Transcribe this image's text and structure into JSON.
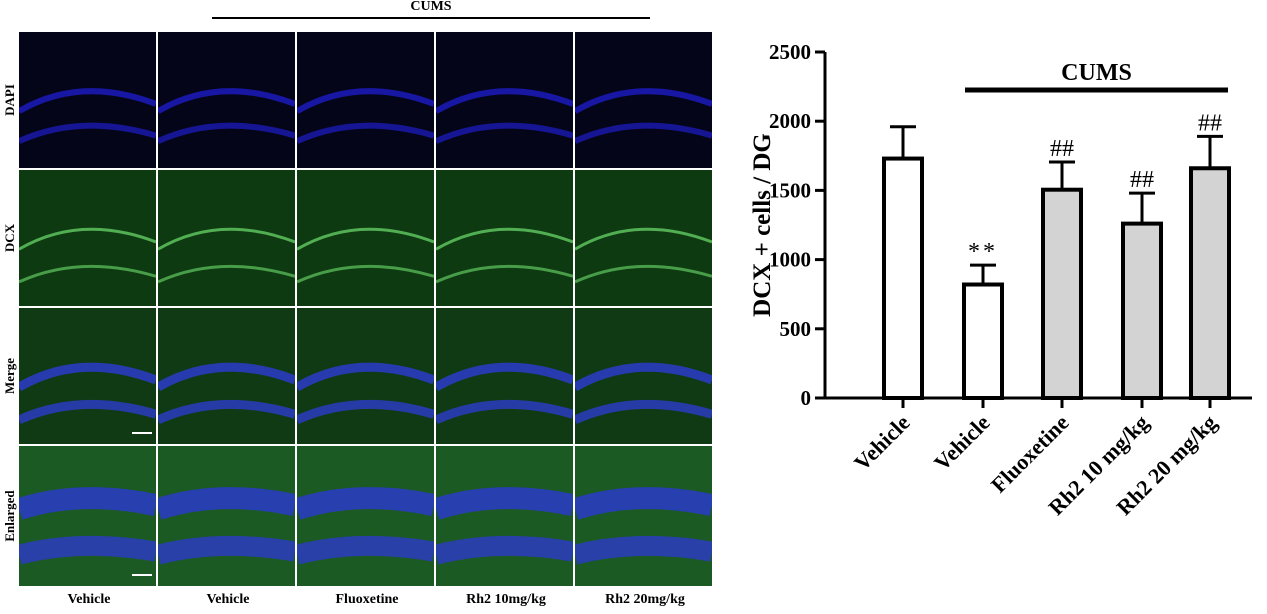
{
  "figure": {
    "cums_label_top": "CUMS",
    "row_labels": [
      "DAPI",
      "DCX",
      "Merge",
      "Enlarged"
    ],
    "column_labels": [
      "Vehicle",
      "Vehicle",
      "Fluoxetine",
      "Rh2 10mg/kg",
      "Rh2 20mg/kg"
    ],
    "colors": {
      "dapi": "#1a1ab4",
      "dcx": "#2a8a2a",
      "merge_blue": "#2a3cc0",
      "bar_white": "#ffffff",
      "bar_grey": "#d3d3d3"
    }
  },
  "chart_data": {
    "type": "bar",
    "title": "",
    "xlabel": "",
    "ylabel": "DCX + cells /  DG",
    "ylim": [
      0,
      2500
    ],
    "yticks": [
      0,
      500,
      1000,
      1500,
      2000,
      2500
    ],
    "categories": [
      "Vehicle",
      "Vehicle",
      "Fluoxetine",
      "Rh2 10 mg/kg",
      "Rh2 20 mg/kg"
    ],
    "values": [
      1730,
      820,
      1505,
      1260,
      1660
    ],
    "errors": [
      230,
      140,
      200,
      220,
      230
    ],
    "fills": [
      "#ffffff",
      "#ffffff",
      "#d3d3d3",
      "#d3d3d3",
      "#d3d3d3"
    ],
    "annotations": [
      "",
      "**",
      "##",
      "##",
      "##"
    ],
    "group_label": "CUMS",
    "group_span": [
      1,
      4
    ]
  }
}
